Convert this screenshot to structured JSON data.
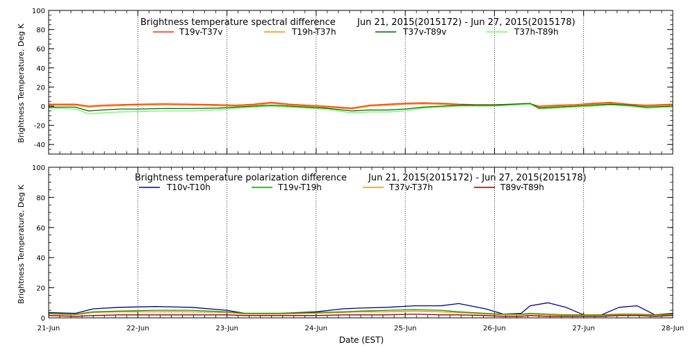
{
  "chart_data": [
    {
      "type": "line",
      "title": "Brightness temperature spectral difference",
      "date_range": "Jun 21, 2015(2015172) - Jun 27, 2015(2015178)",
      "ylabel": "Brightness Temperature, Deg K",
      "xlabel": "",
      "ylim": [
        -50,
        100
      ],
      "yticks": [
        -40,
        -20,
        0,
        20,
        40,
        60,
        80,
        100
      ],
      "xlim": [
        0,
        7
      ],
      "grid": true,
      "legend": "top",
      "series": [
        {
          "name": "T19v-T37v",
          "color": "#ff2a00",
          "x": [
            0,
            0.3,
            0.45,
            0.6,
            0.8,
            1.0,
            1.3,
            1.6,
            1.9,
            2.1,
            2.3,
            2.5,
            2.7,
            2.9,
            3.1,
            3.4,
            3.6,
            3.8,
            4.0,
            4.2,
            4.4,
            4.6,
            4.8,
            5.0,
            5.2,
            5.4,
            5.5,
            5.7,
            5.9,
            6.1,
            6.3,
            6.5,
            6.7,
            7.0
          ],
          "values": [
            2,
            2,
            0,
            1,
            1.5,
            2,
            2.5,
            2,
            1.5,
            1,
            2,
            4,
            2,
            1,
            0,
            -2,
            1,
            2,
            3,
            3.5,
            3,
            2,
            1.5,
            1.5,
            2,
            2.5,
            0,
            1,
            1.5,
            3,
            4,
            2,
            1,
            2
          ]
        },
        {
          "name": "T19h-T37h",
          "color": "#ff8c00",
          "x": [
            0,
            0.3,
            0.45,
            0.6,
            0.8,
            1.0,
            1.3,
            1.6,
            1.9,
            2.1,
            2.3,
            2.5,
            2.7,
            2.9,
            3.1,
            3.4,
            3.6,
            3.8,
            4.0,
            4.2,
            4.4,
            4.6,
            4.8,
            5.0,
            5.2,
            5.4,
            5.5,
            5.7,
            5.9,
            6.1,
            6.3,
            6.5,
            6.7,
            7.0
          ],
          "values": [
            1,
            1,
            -1,
            0,
            0.5,
            1,
            1.5,
            1,
            0.5,
            0,
            1,
            3,
            1,
            0,
            -1,
            -3,
            0,
            1,
            2,
            2.5,
            2,
            1,
            1,
            1,
            1.5,
            2,
            -1,
            0,
            1,
            2,
            3,
            1,
            0,
            1
          ]
        },
        {
          "name": "T37v-T89v",
          "color": "#006400",
          "x": [
            0,
            0.3,
            0.45,
            0.6,
            0.8,
            1.0,
            1.3,
            1.6,
            1.9,
            2.1,
            2.3,
            2.5,
            2.7,
            2.9,
            3.1,
            3.4,
            3.6,
            3.8,
            4.0,
            4.2,
            4.4,
            4.6,
            4.8,
            5.0,
            5.2,
            5.4,
            5.5,
            5.7,
            5.9,
            6.1,
            6.3,
            6.5,
            6.7,
            7.0
          ],
          "values": [
            -1,
            -1,
            -5,
            -4,
            -3,
            -3,
            -2.5,
            -2.5,
            -2,
            -1,
            0,
            1,
            0,
            -1,
            -2,
            -5,
            -4,
            -4,
            -3,
            -1,
            0,
            1,
            1,
            1,
            2,
            3,
            -2,
            -1,
            0,
            1,
            2,
            1,
            -1,
            0
          ]
        },
        {
          "name": "T37h-T89h",
          "color": "#66ff66",
          "x": [
            0,
            0.3,
            0.45,
            0.6,
            0.8,
            1.0,
            1.3,
            1.6,
            1.9,
            2.1,
            2.3,
            2.5,
            2.7,
            2.9,
            3.1,
            3.4,
            3.6,
            3.8,
            4.0,
            4.2,
            4.4,
            4.6,
            4.8,
            5.0,
            5.2,
            5.4,
            5.5,
            5.7,
            5.9,
            6.1,
            6.3,
            6.5,
            6.7,
            7.0
          ],
          "values": [
            -2,
            -3,
            -8,
            -7,
            -6,
            -5.5,
            -5,
            -5,
            -4,
            -2,
            -1,
            0,
            -1,
            -2,
            -3,
            -7,
            -6,
            -6,
            -5,
            -2,
            -1,
            0,
            0,
            0,
            1,
            2,
            -3,
            -2,
            -1,
            0,
            1,
            0,
            -2,
            -1
          ]
        }
      ]
    },
    {
      "type": "line",
      "title": "Brightness temperature polarization difference",
      "date_range": "Jun 21, 2015(2015172) - Jun 27, 2015(2015178)",
      "ylabel": "Brightness Temperature, Deg K",
      "xlabel": "Date (EST)",
      "ylim": [
        0,
        100
      ],
      "yticks": [
        0,
        20,
        40,
        60,
        80,
        100
      ],
      "xlim": [
        0,
        7
      ],
      "categories": [
        "21-Jun",
        "22-Jun",
        "23-Jun",
        "24-Jun",
        "25-Jun",
        "26-Jun",
        "27-Jun",
        "28-Jun"
      ],
      "grid": true,
      "legend": "top",
      "series": [
        {
          "name": "T10v-T10h",
          "color": "#000090",
          "x": [
            0,
            0.3,
            0.5,
            0.8,
            1.2,
            1.6,
            2.0,
            2.2,
            2.6,
            3.0,
            3.3,
            3.5,
            3.8,
            4.1,
            4.4,
            4.6,
            4.9,
            5.1,
            5.3,
            5.4,
            5.6,
            5.8,
            6.0,
            6.2,
            6.4,
            6.6,
            6.8,
            7.0
          ],
          "values": [
            3.5,
            3,
            6,
            7,
            7.5,
            7,
            5,
            3,
            3,
            4,
            6,
            6.5,
            7,
            8,
            8,
            9.5,
            6,
            2.5,
            3,
            8,
            10,
            7,
            2,
            2,
            7,
            8,
            2,
            3
          ]
        },
        {
          "name": "T19v-T19h",
          "color": "#00a000",
          "x": [
            0,
            0.3,
            0.5,
            0.8,
            1.2,
            1.6,
            2.0,
            2.2,
            2.6,
            3.0,
            3.3,
            3.5,
            3.8,
            4.1,
            4.4,
            4.6,
            4.9,
            5.1,
            5.3,
            5.4,
            5.6,
            5.8,
            6.0,
            6.2,
            6.4,
            6.6,
            6.8,
            7.0
          ],
          "values": [
            3,
            2.5,
            4,
            4.5,
            5,
            5,
            4,
            3,
            3,
            3.5,
            4,
            4.5,
            5,
            5.5,
            5,
            4,
            3,
            2.5,
            2.5,
            3,
            2.5,
            2,
            2,
            2,
            2.5,
            2.5,
            2,
            2.5
          ]
        },
        {
          "name": "T37v-T37h",
          "color": "#ff8c00",
          "x": [
            0,
            0.3,
            0.5,
            0.8,
            1.2,
            1.6,
            2.0,
            2.2,
            2.6,
            3.0,
            3.3,
            3.5,
            3.8,
            4.1,
            4.4,
            4.6,
            4.9,
            5.1,
            5.3,
            5.4,
            5.6,
            5.8,
            6.0,
            6.2,
            6.4,
            6.6,
            6.8,
            7.0
          ],
          "values": [
            2.5,
            2,
            3.5,
            4,
            4,
            4,
            3.5,
            2.5,
            2.5,
            3,
            3.5,
            4,
            4,
            4.5,
            4,
            3.5,
            2.5,
            2,
            2,
            2.5,
            2,
            1.5,
            1.5,
            1.5,
            2,
            2,
            1.5,
            2
          ]
        },
        {
          "name": "T89v-T89h",
          "color": "#8b0000",
          "x": [
            0,
            0.3,
            0.5,
            0.8,
            1.2,
            1.6,
            2.0,
            2.2,
            2.6,
            3.0,
            3.3,
            3.5,
            3.8,
            4.1,
            4.4,
            4.6,
            4.9,
            5.1,
            5.3,
            5.4,
            5.6,
            5.8,
            6.0,
            6.2,
            6.4,
            6.6,
            6.8,
            7.0
          ],
          "values": [
            1.5,
            1,
            1.5,
            2,
            2,
            2,
            2,
            1.5,
            1.5,
            1.5,
            2,
            2,
            2,
            2.5,
            2,
            2,
            1.5,
            1,
            1,
            1.5,
            1,
            1,
            1,
            1,
            1.5,
            1.5,
            1,
            1.5
          ]
        }
      ]
    }
  ]
}
